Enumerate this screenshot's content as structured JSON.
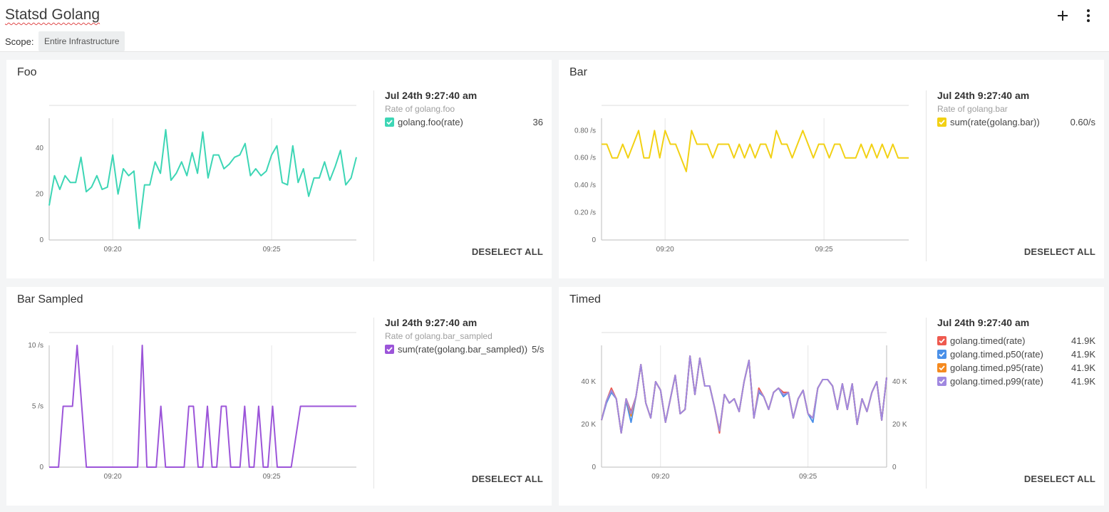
{
  "dashboard": {
    "title": "Statsd Golang",
    "scope_label": "Scope:",
    "scope_value": "Entire Infrastructure",
    "add_icon": "plus-icon",
    "more_icon": "more-vertical-icon"
  },
  "colors": {
    "teal": "#3dd6b5",
    "yellow": "#f2d114",
    "purple": "#9c55d9",
    "red": "#ee5a4f",
    "blue": "#4a90e8",
    "orange": "#f58a1f",
    "lavender": "#a088e0"
  },
  "panels": [
    {
      "title": "Foo",
      "legend": {
        "time": "Jul 24th 9:27:40 am",
        "subtitle": "Rate of golang.foo",
        "items": [
          {
            "name": "golang.foo(rate)",
            "value": "36",
            "color": "#3dd6b5"
          }
        ],
        "deselect_label": "DESELECT ALL"
      },
      "chart_data": {
        "type": "line",
        "x_range": [
          "09:18",
          "09:27:40"
        ],
        "x_ticks": [
          "09:20",
          "09:25"
        ],
        "y_ticks": [
          "0",
          "20",
          "40"
        ],
        "ylim": [
          0,
          53
        ],
        "right_axis": false,
        "series": [
          {
            "name": "golang.foo(rate)",
            "color": "#3dd6b5",
            "values": [
              15,
              28,
              22,
              28,
              25,
              25,
              36,
              21,
              23,
              28,
              22,
              23,
              37,
              20,
              31,
              28,
              30,
              5,
              24,
              24,
              34,
              29,
              48,
              26,
              29,
              34,
              28,
              38,
              29,
              47,
              27,
              37,
              37,
              31,
              33,
              36,
              37,
              42,
              28,
              31,
              28,
              30,
              37,
              41,
              25,
              24,
              41,
              25,
              31,
              19,
              27,
              27,
              34,
              26,
              32,
              39,
              24,
              27,
              36
            ]
          }
        ]
      }
    },
    {
      "title": "Bar",
      "legend": {
        "time": "Jul 24th 9:27:40 am",
        "subtitle": "Rate of golang.bar",
        "items": [
          {
            "name": "sum(rate(golang.bar))",
            "value": "0.60/s",
            "color": "#f2d114"
          }
        ],
        "deselect_label": "DESELECT ALL"
      },
      "chart_data": {
        "type": "line",
        "x_range": [
          "09:18",
          "09:27:40"
        ],
        "x_ticks": [
          "09:20",
          "09:25"
        ],
        "y_ticks": [
          "0",
          "0.20 /s",
          "0.40 /s",
          "0.60 /s",
          "0.80 /s"
        ],
        "ylim": [
          0,
          0.89
        ],
        "right_axis": false,
        "series": [
          {
            "name": "sum(rate(golang.bar))",
            "color": "#f2d114",
            "values": [
              0.7,
              0.7,
              0.6,
              0.6,
              0.7,
              0.6,
              0.7,
              0.8,
              0.6,
              0.6,
              0.8,
              0.6,
              0.8,
              0.7,
              0.7,
              0.6,
              0.5,
              0.8,
              0.7,
              0.7,
              0.7,
              0.6,
              0.7,
              0.7,
              0.7,
              0.6,
              0.7,
              0.6,
              0.7,
              0.6,
              0.7,
              0.7,
              0.6,
              0.8,
              0.7,
              0.7,
              0.6,
              0.7,
              0.8,
              0.7,
              0.6,
              0.7,
              0.7,
              0.6,
              0.7,
              0.7,
              0.6,
              0.6,
              0.6,
              0.7,
              0.6,
              0.7,
              0.6,
              0.7,
              0.6,
              0.7,
              0.6,
              0.6,
              0.6
            ]
          }
        ]
      }
    },
    {
      "title": "Bar Sampled",
      "legend": {
        "time": "Jul 24th 9:27:40 am",
        "subtitle": "Rate of golang.bar_sampled",
        "items": [
          {
            "name": "sum(rate(golang.bar_sampled))",
            "value": "5/s",
            "color": "#9c55d9"
          }
        ],
        "deselect_label": "DESELECT ALL"
      },
      "chart_data": {
        "type": "line",
        "x_range": [
          "09:18",
          "09:27:40"
        ],
        "x_ticks": [
          "09:20",
          "09:25"
        ],
        "y_ticks": [
          "0",
          "5 /s",
          "10 /s"
        ],
        "ylim": [
          0,
          10
        ],
        "right_axis": false,
        "series": [
          {
            "name": "sum(rate(golang.bar_sampled))",
            "color": "#9c55d9",
            "points": [
              [
                0,
                0
              ],
              [
                1,
                0
              ],
              [
                1.5,
                5
              ],
              [
                2.5,
                5
              ],
              [
                3,
                10
              ],
              [
                4,
                0
              ],
              [
                9,
                0
              ],
              [
                9.5,
                0
              ],
              [
                10,
                10
              ],
              [
                10.5,
                0
              ],
              [
                11.5,
                0
              ],
              [
                12,
                5
              ],
              [
                12.5,
                0
              ],
              [
                14.5,
                0
              ],
              [
                15,
                5
              ],
              [
                15.5,
                5
              ],
              [
                16,
                0
              ],
              [
                16.5,
                0
              ],
              [
                17,
                5
              ],
              [
                17.5,
                0
              ],
              [
                18,
                0
              ],
              [
                18.5,
                5
              ],
              [
                19,
                5
              ],
              [
                19.5,
                0
              ],
              [
                20.5,
                0
              ],
              [
                21,
                5
              ],
              [
                21.5,
                0
              ],
              [
                22,
                0
              ],
              [
                22.5,
                5
              ],
              [
                23,
                0
              ],
              [
                23.5,
                0
              ],
              [
                24,
                5
              ],
              [
                24.5,
                0
              ],
              [
                26,
                0
              ],
              [
                27,
                5
              ],
              [
                33,
                5
              ]
            ],
            "x_domain": [
              0,
              33
            ]
          }
        ]
      }
    },
    {
      "title": "Timed",
      "legend": {
        "time": "Jul 24th 9:27:40 am",
        "subtitle": "",
        "items": [
          {
            "name": "golang.timed(rate)",
            "value": "41.9K",
            "color": "#ee5a4f"
          },
          {
            "name": "golang.timed.p50(rate)",
            "value": "41.9K",
            "color": "#4a90e8"
          },
          {
            "name": "golang.timed.p95(rate)",
            "value": "41.9K",
            "color": "#f58a1f"
          },
          {
            "name": "golang.timed.p99(rate)",
            "value": "41.9K",
            "color": "#a088e0"
          }
        ],
        "deselect_label": "DESELECT ALL"
      },
      "chart_data": {
        "type": "line",
        "x_range": [
          "09:18",
          "09:27:40"
        ],
        "x_ticks": [
          "09:20",
          "09:25"
        ],
        "y_ticks": [
          "0",
          "20 K",
          "40 K"
        ],
        "ylim": [
          0,
          57000
        ],
        "right_axis": true,
        "series": [
          {
            "name": "golang.timed(rate)",
            "color": "#ee5a4f",
            "values": [
              22000,
              31000,
              37000,
              32000,
              16000,
              32000,
              26000,
              33000,
              48000,
              30000,
              23000,
              40000,
              36000,
              21000,
              32000,
              43000,
              25000,
              27000,
              52000,
              34000,
              51000,
              38000,
              38000,
              28000,
              16000,
              34000,
              30000,
              32000,
              26000,
              40000,
              50000,
              23000,
              37000,
              33000,
              27000,
              35000,
              37000,
              35000,
              35000,
              23000,
              32000,
              36000,
              25000,
              23000,
              37000,
              41000,
              41000,
              38000,
              27000,
              39000,
              27000,
              39000,
              20000,
              32000,
              26000,
              35000,
              40000,
              22000,
              42000
            ]
          },
          {
            "name": "golang.timed.p50(rate)",
            "color": "#4a90e8",
            "values": [
              22000,
              30000,
              35000,
              32000,
              16000,
              31000,
              21000,
              33000,
              48000,
              30000,
              23000,
              40000,
              36000,
              21000,
              32000,
              43000,
              25000,
              27000,
              52000,
              34000,
              51000,
              38000,
              38000,
              28000,
              17000,
              34000,
              30000,
              32000,
              26000,
              40000,
              50000,
              23000,
              35000,
              33000,
              27000,
              35000,
              37000,
              33000,
              35000,
              23000,
              32000,
              36000,
              25000,
              21000,
              37000,
              41000,
              41000,
              38000,
              27000,
              39000,
              27000,
              39000,
              20000,
              32000,
              26000,
              35000,
              40000,
              22000,
              42000
            ]
          },
          {
            "name": "golang.timed.p95(rate)",
            "color": "#f58a1f",
            "values": [
              22000,
              31000,
              36000,
              32000,
              16000,
              32000,
              24000,
              33000,
              48000,
              30000,
              23000,
              40000,
              36000,
              21000,
              32000,
              43000,
              25000,
              27000,
              52000,
              34000,
              51000,
              38000,
              38000,
              28000,
              17000,
              34000,
              30000,
              32000,
              26000,
              40000,
              50000,
              23000,
              36000,
              33000,
              27000,
              35000,
              37000,
              34000,
              35000,
              23000,
              32000,
              36000,
              25000,
              23000,
              37000,
              41000,
              41000,
              38000,
              27000,
              39000,
              27000,
              39000,
              20000,
              32000,
              26000,
              35000,
              40000,
              22000,
              42000
            ]
          },
          {
            "name": "golang.timed.p99(rate)",
            "color": "#a088e0",
            "values": [
              22000,
              31000,
              36000,
              32000,
              16000,
              32000,
              25000,
              33000,
              48000,
              30000,
              23000,
              40000,
              36000,
              21000,
              32000,
              43000,
              25000,
              27000,
              52000,
              34000,
              51000,
              38000,
              38000,
              28000,
              17000,
              34000,
              30000,
              32000,
              26000,
              40000,
              50000,
              23000,
              36000,
              33000,
              27000,
              35000,
              37000,
              34000,
              35000,
              23000,
              32000,
              36000,
              25000,
              23000,
              37000,
              41000,
              41000,
              38000,
              27000,
              39000,
              27000,
              39000,
              20000,
              32000,
              26000,
              35000,
              40000,
              22000,
              42000
            ]
          }
        ]
      }
    }
  ]
}
